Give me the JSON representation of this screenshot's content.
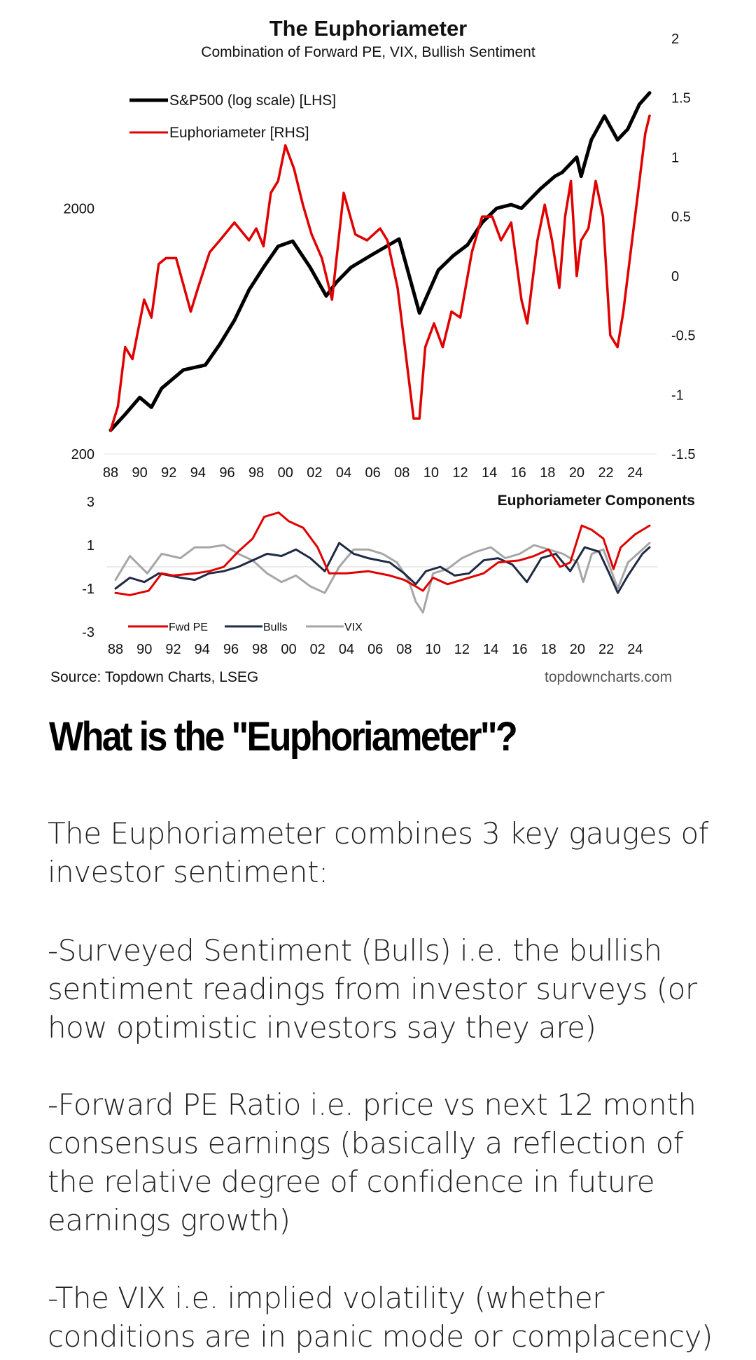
{
  "chart_data": [
    {
      "type": "line",
      "title": "The Euphoriameter",
      "subtitle": "Combination of Forward PE, VIX, Bullish Sentiment",
      "x_tick_labels": [
        "88",
        "90",
        "92",
        "94",
        "96",
        "98",
        "00",
        "02",
        "04",
        "06",
        "08",
        "10",
        "12",
        "14",
        "16",
        "18",
        "20",
        "22",
        "24"
      ],
      "x_range": [
        1988,
        2025
      ],
      "left_axis": {
        "scale": "log",
        "ylim": [
          200,
          6000
        ],
        "ticks": [
          {
            "value": 200,
            "label": "200"
          },
          {
            "value": 2000,
            "label": "2000"
          }
        ]
      },
      "right_axis": {
        "ylim": [
          -1.5,
          2
        ],
        "ticks": [
          "2",
          "1.5",
          "1",
          "0.5",
          "0",
          "-0.5",
          "-1",
          "-1.5"
        ]
      },
      "legend": [
        "S&P500 (log scale) [LHS]",
        "Euphoriameter [RHS]"
      ],
      "series": [
        {
          "name": "S&P500 (log scale) [LHS]",
          "axis": "left",
          "color": "#000000",
          "x": [
            1988.0,
            1989.0,
            1990.0,
            1990.8,
            1991.5,
            1993.0,
            1994.5,
            1995.5,
            1996.5,
            1997.5,
            1998.5,
            1999.5,
            2000.5,
            2001.7,
            2002.8,
            2003.5,
            2004.5,
            2006.0,
            2007.8,
            2009.2,
            2010.5,
            2011.5,
            2012.5,
            2013.5,
            2014.5,
            2015.5,
            2016.2,
            2017.5,
            2018.5,
            2019.0,
            2020.0,
            2020.3,
            2021.0,
            2021.9,
            2022.8,
            2023.5,
            2024.3,
            2025.0
          ],
          "y": [
            250,
            290,
            340,
            310,
            370,
            440,
            460,
            560,
            700,
            930,
            1150,
            1400,
            1470,
            1150,
            880,
            1000,
            1150,
            1300,
            1500,
            750,
            1120,
            1280,
            1420,
            1750,
            2000,
            2070,
            2000,
            2400,
            2700,
            2800,
            3230,
            2700,
            3800,
            4750,
            3800,
            4200,
            5300,
            5900
          ]
        },
        {
          "name": "Euphoriameter [RHS]",
          "axis": "right",
          "color": "#e00000",
          "x": [
            1988.0,
            1988.5,
            1989.0,
            1989.5,
            1990.3,
            1990.8,
            1991.3,
            1991.8,
            1992.5,
            1993.5,
            1994.0,
            1994.8,
            1995.5,
            1996.5,
            1997.5,
            1998.0,
            1998.5,
            1999.0,
            1999.5,
            2000.0,
            2000.6,
            2001.2,
            2001.8,
            2002.5,
            2003.2,
            2004.0,
            2004.8,
            2005.6,
            2006.5,
            2007.0,
            2007.7,
            2008.3,
            2008.8,
            2009.2,
            2009.6,
            2010.2,
            2010.8,
            2011.4,
            2012.0,
            2012.8,
            2013.5,
            2014.2,
            2014.8,
            2015.5,
            2016.2,
            2016.6,
            2017.3,
            2017.8,
            2018.3,
            2018.8,
            2019.2,
            2019.6,
            2020.0,
            2020.3,
            2020.8,
            2021.3,
            2021.8,
            2022.3,
            2022.8,
            2023.2,
            2023.7,
            2024.2,
            2024.7,
            2025.0
          ],
          "y": [
            -1.3,
            -1.1,
            -0.6,
            -0.7,
            -0.2,
            -0.35,
            0.1,
            0.15,
            0.15,
            -0.3,
            -0.1,
            0.2,
            0.3,
            0.45,
            0.3,
            0.4,
            0.25,
            0.7,
            0.8,
            1.1,
            0.9,
            0.6,
            0.35,
            0.15,
            -0.2,
            0.7,
            0.35,
            0.3,
            0.4,
            0.3,
            -0.1,
            -0.7,
            -1.2,
            -1.2,
            -0.6,
            -0.4,
            -0.6,
            -0.3,
            -0.35,
            0.2,
            0.5,
            0.5,
            0.3,
            0.45,
            -0.2,
            -0.4,
            0.3,
            0.6,
            0.3,
            -0.1,
            0.5,
            0.8,
            0.0,
            0.3,
            0.4,
            0.8,
            0.5,
            -0.5,
            -0.6,
            -0.3,
            0.2,
            0.7,
            1.2,
            1.35
          ]
        }
      ]
    },
    {
      "type": "line",
      "title": "Euphoriameter Components",
      "x_tick_labels": [
        "88",
        "90",
        "92",
        "94",
        "96",
        "98",
        "00",
        "02",
        "04",
        "06",
        "08",
        "10",
        "12",
        "14",
        "16",
        "18",
        "20",
        "22",
        "24"
      ],
      "x_range": [
        1988,
        2025
      ],
      "ylim": [
        -3,
        3
      ],
      "y_ticks": [
        "3",
        "1",
        "-1",
        "-3"
      ],
      "legend": [
        "Fwd PE",
        "Bulls",
        "VIX"
      ],
      "series": [
        {
          "name": "Fwd PE",
          "color": "#e00000",
          "x": [
            1988.0,
            1989.0,
            1990.3,
            1991.2,
            1992.0,
            1993.5,
            1994.5,
            1995.5,
            1996.5,
            1997.5,
            1998.3,
            1999.3,
            2000.0,
            2001.0,
            2002.0,
            2002.8,
            2004.0,
            2005.5,
            2007.0,
            2008.0,
            2008.8,
            2009.3,
            2010.0,
            2011.0,
            2012.0,
            2013.5,
            2014.5,
            2016.0,
            2017.0,
            2018.0,
            2018.8,
            2019.5,
            2020.3,
            2021.0,
            2021.8,
            2022.5,
            2023.0,
            2024.0,
            2025.0
          ],
          "y": [
            -1.2,
            -1.3,
            -1.1,
            -0.3,
            -0.4,
            -0.3,
            -0.2,
            0.0,
            0.7,
            1.3,
            2.3,
            2.5,
            2.1,
            1.8,
            0.9,
            -0.3,
            -0.3,
            -0.2,
            -0.4,
            -0.6,
            -0.9,
            -1.1,
            -0.5,
            -0.8,
            -0.6,
            -0.3,
            0.2,
            0.3,
            0.5,
            0.8,
            0.0,
            0.2,
            1.9,
            1.7,
            1.3,
            -0.1,
            0.9,
            1.5,
            1.9
          ]
        },
        {
          "name": "Bulls",
          "color": "#1f2a44",
          "x": [
            1988.0,
            1989.0,
            1990.0,
            1991.0,
            1992.5,
            1993.5,
            1994.5,
            1995.5,
            1996.5,
            1997.5,
            1998.5,
            1999.5,
            2000.5,
            2001.5,
            2002.5,
            2003.5,
            2004.5,
            2005.5,
            2007.0,
            2008.0,
            2008.8,
            2009.5,
            2010.5,
            2011.5,
            2012.5,
            2013.5,
            2014.5,
            2015.5,
            2016.5,
            2017.5,
            2018.5,
            2019.5,
            2020.5,
            2021.5,
            2022.2,
            2022.8,
            2023.5,
            2024.5,
            2025.0
          ],
          "y": [
            -1.0,
            -0.5,
            -0.7,
            -0.3,
            -0.5,
            -0.6,
            -0.3,
            -0.2,
            0.0,
            0.3,
            0.6,
            0.5,
            0.8,
            0.4,
            -0.2,
            1.1,
            0.6,
            0.4,
            0.2,
            -0.3,
            -0.8,
            -0.2,
            0.0,
            -0.4,
            -0.3,
            0.3,
            0.4,
            0.1,
            -0.7,
            0.4,
            0.6,
            -0.2,
            0.9,
            0.7,
            -0.3,
            -1.2,
            -0.4,
            0.6,
            0.9
          ]
        },
        {
          "name": "VIX",
          "color": "#a6a6a6",
          "x": [
            1988.0,
            1989.0,
            1990.2,
            1991.2,
            1992.5,
            1993.5,
            1994.5,
            1995.5,
            1996.5,
            1997.5,
            1998.5,
            1999.5,
            2000.5,
            2001.5,
            2002.5,
            2003.5,
            2004.5,
            2005.5,
            2006.5,
            2007.5,
            2008.3,
            2008.8,
            2009.3,
            2010.0,
            2011.0,
            2012.0,
            2013.0,
            2014.0,
            2015.0,
            2016.0,
            2017.0,
            2018.0,
            2019.0,
            2020.0,
            2020.4,
            2021.0,
            2021.8,
            2022.8,
            2023.5,
            2024.5,
            2025.0
          ],
          "y": [
            -0.6,
            0.5,
            -0.3,
            0.6,
            0.4,
            0.9,
            0.9,
            1.0,
            0.6,
            0.3,
            -0.3,
            -0.7,
            -0.4,
            -0.9,
            -1.2,
            0.0,
            0.8,
            0.8,
            0.6,
            0.2,
            -0.6,
            -1.6,
            -2.1,
            -0.3,
            -0.1,
            0.4,
            0.7,
            0.9,
            0.4,
            0.6,
            1.0,
            0.8,
            0.6,
            0.2,
            -0.7,
            0.6,
            0.8,
            -1.0,
            0.2,
            0.8,
            1.1
          ]
        }
      ]
    }
  ],
  "source": {
    "left": "Source: Topdown Charts, LSEG",
    "right": "topdowncharts.com"
  },
  "article": {
    "heading": "What is the \"Euphoriameter\"?",
    "intro": "The Euphoriameter combines 3 key gauges of investor sentiment:",
    "point_bulls": "-Surveyed Sentiment (Bulls) i.e. the bullish sentiment readings from investor surveys (or how optimistic investors say they are)",
    "point_pe": "-Forward PE Ratio i.e. price vs next 12 month consensus earnings (basically a reflection of the relative degree of confidence in future earnings growth)",
    "point_vix": "-The VIX i.e. implied volatility (whether conditions are in panic mode or complacency)"
  }
}
